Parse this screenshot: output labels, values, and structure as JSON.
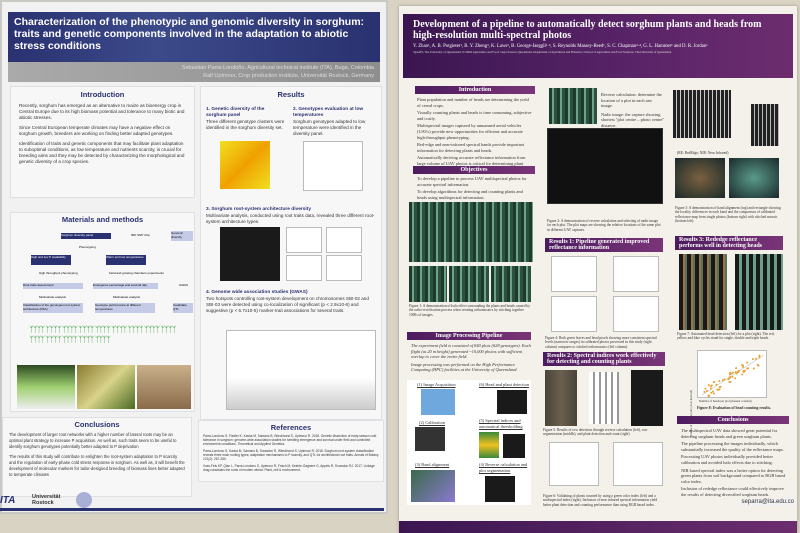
{
  "left_poster": {
    "title": "Characterization of the phenotypic and genomic diversity in sorghum: traits and genetic components involved in the adaptation to abiotic stress conditions",
    "authors": [
      "Sebastián Parra-Londoño, Agricultural technical institute (ITA), Buga, Colombia",
      "Ralf Uptmoor, Crop production institute, Universität Rostock, Germany"
    ],
    "introduction": {
      "heading": "Introduction",
      "bullets": [
        "Recently, sorghum has emerged as an alternative to maize as bioenergy crop in Central Europe due to its high biomass potential and tolerance to many biotic and abiotic stresses.",
        "Since Central European temperate climates may have a negative effect on sorghum growth, breeders are working on finding better adapted genotypes.",
        "Identification of traits and genetic components that may facilitate plant adaptation to suboptimal conditions, as low temperature and nutrients scarcity, is crucial for breeding aims and they may be detected by characterizing the morphological and genetic diversity of a crop species."
      ]
    },
    "materials": {
      "heading": "Materials and methods",
      "nodes": [
        "Sorghum diversity panel",
        "90K SNP chip",
        "Genomic diversity",
        "Phenotyping",
        "High and low P availability",
        "Warm and low temperatures",
        "High throughput phenotyping",
        "Field and growing chambers experiments",
        "Root traits assessment",
        "Emergence percentage and survival rate",
        "GWAS",
        "Multivariate analysis",
        "Multivariate analysis",
        "Classification of the genotypes root-system architecture (RSA)",
        "Genotype performance at different temperatures",
        "Candidate QTL"
      ]
    },
    "results": {
      "heading": "Results",
      "sections": [
        {
          "title": "1. Genetic diversity of the sorghum panel",
          "text": "Three different genotype clusters were identified in the sorghum diversity set."
        },
        {
          "title": "2. Genotypes evaluation at low temperatures",
          "text": "Sorghum genotypes adapted to low temperature were identified in the diversity panel."
        },
        {
          "title": "3. Sorghum root-system architecture diversity",
          "text": "Multivariate analysis, conducted using root traits data, revealed three different root-system architecture types."
        },
        {
          "title": "4. Genome wide association studies (GWAS)",
          "text": "Two hotspots controlling root-system development on chromosomes SBI-02 and SBI-03 were detected using co-localization of significant (p < 2.9x10-6) and suggestive (p < 5.7x10-5) marker-trait associations for several traits."
        }
      ]
    },
    "conclusions": {
      "heading": "Conclusions",
      "bullets": [
        "The development of larger root networks with a higher number of lateral roots may be an optimal plant strategy to increase P acquisition. As well as, such traits seem to be useful to identify sorghum genotypes potentially better adapted to P deprivation",
        "The results of this study will contribute to enlighten the root-system adaptation to P scarcity and the regulation of early-phase cold stress response in sorghum. As well as, it will benefit the development of molecular markers for tailor-designed breeding of biomass lines better adapted to temperate climates"
      ]
    },
    "references": {
      "heading": "References",
      "items": [
        "Parra-Londono S, Fiedler K, Kavka M, Samans B, Wieckhorst S, Uptmoor R. 2018. Genetic dissection of early-season cold tolerance in sorghum: genome-wide association studies for seedling emergence and survival under field and controlled environment conditions. Theoretical and Applied Genetics.",
        "Parra-Londono S, Kavka M, Samans B, Snowdon R, Wieckhorst S, Uptmoor R. 2018. Sorghum root-system classification reveals three main rooting types; adaptation mechanisms to P scarcity, and QTL for architectural root traits. Annals of Botany 121(2): 267-280.",
        "Voss-Fels KP, Qian L, Parra-Londono S, Uptmoor R, Frisch M, Keeble-Gagnere G, Appels R, Snowdon RJ. 2017. Linkage drag constrains the roots of modern wheat. Plant, cell & environment."
      ]
    },
    "logos": {
      "ita": "ITA",
      "rostock": "Universität Rostock"
    },
    "email": "separra@ita.edu.co"
  },
  "right_poster": {
    "title": "Development of a pipeline to automatically detect sorghum plants and heads from high-resolution multi-spectral photos",
    "authors": "Y. Zhao¹, A. B. Potgieter¹, B. Y. Zheng², K. Laws³, B. George-Jaeggli¹·³, S. Reynolds Massey-Reed¹, S. C. Chapman²·⁴, G. L. Hammer¹ and D. R. Jordan¹",
    "affiliations": "¹QAAFI, The University of Queensland; ²CSIRO Agriculture and Food; ³Agri-Science Queensland, Department of Agriculture and Fisheries; ⁴School of Agriculture and Food Sciences, The University of Queensland",
    "introduction": {
      "heading": "Introduction",
      "bullets": [
        "Plant population and number of heads are determining the yield of cereal crops.",
        "Visually counting plants and heads is time consuming, subjective and costly.",
        "Multispectral images captured by unmanned aerial vehicles (UAVs) provide new opportunities for efficient and accurate high-throughput phenotyping.",
        "Red-edge and near-infrared spectral bands provide important information for detecting plants and heads.",
        "Automatically deriving accurate reflectance information from large volume of UAV photos is critical for determining plant organ characteristics."
      ]
    },
    "objectives": {
      "heading": "Objectives",
      "bullets": [
        "To develop a pipeline to process UAV multispectral photos for accurate spectral information.",
        "To develop algorithms for detecting and counting plants and heads using multispectral information."
      ]
    },
    "fig1": "Figure 1: A demonstration of halo effect surrounding the plants and heads caused by the ortho-rectification process when creating orthomosaics by stitching together 1000s of images.",
    "pipeline": {
      "heading": "Image Processing Pipeline",
      "bullets": [
        "The experiment field is consisted of 840 plots (628 genotypes). Each flight (at 20 m height) generated ~10,000 photos with sufficient overlap to cover the entire field.",
        "Image processing was performed on the High Performance Computing (HPC) facilities at the University of Queensland."
      ],
      "steps": [
        "(1) Image Acquisition",
        "(2) Calibration",
        "(3) Band alignment",
        "(4) Reverse calculation and plot segmentation",
        "(5) Spectral indices and automatical thresholding",
        "(6) Head and plant detection"
      ]
    },
    "reverse_notes": [
      "Reverse calculation: determine the location of a plot in each raw image.",
      "Nadir image: the capture showing shortest \"plot centre – photo centre\" distance."
    ],
    "fig2": "Figure 2: A demonstration of reverse calculation and selecting of nadir image for each plot. The plot maps are showing the relative locations of the same plot in different UAV captures.",
    "results1": {
      "heading": "Results 1: Pipeline generated improved reflectance information",
      "fig4": "Figure 4: Both green leaves and head pixels showing more consistent spectral levels (narrower ranges) in calibrated photos processed in this study (right column) compares to stitched orthomosaics (left column)."
    },
    "results2": {
      "heading": "Results 2: Spectral indices work effectively for detecting and counting plants",
      "fig5": "Figure 5: Results of row detection through reverse calculation (left), row segmentation (middle), and plant detection and count (right)",
      "fig6": "Figure 6: Validating of plants counted by using a green color index (left) and a multispectral index (right). Inclusion of near infrared spectral information yield better plant detection and counting performance than using RGB based index."
    },
    "bands_caption": "(RE: RedEdge; NIR: Near Infrared)",
    "fig3": "Figure 3: A demonstration of band alignment (top) and rectangle showing the locality differences in each band and the comparison of calibrated reflectance map from single photos (bottom right) with stitched mosaic (bottom left).",
    "results3": {
      "heading": "Results 3: Rededge reflectance performs well in detecting heads",
      "fig7": "Figure 7: Automated head detection (left) for a plot (right). The red, yellow and blue cycles stand for single, double and triple heads.",
      "fig8": "Figure 8: Evaluation of head counting results.",
      "xlabel": "Number of heads per plot (manual counted)",
      "ylabel": "Number of heads per plot (Auto detected)"
    },
    "conclusions": {
      "heading": "Conclusions",
      "bullets": [
        "The multispectral UAV data showed great potential for detecting sorghum heads and green sorghum plants.",
        "The pipeline processing the images individually, which substantially increased the quality of the reflectance maps.",
        "Processing UAV photos individually provided better calibration and avoided halo effects due to stitching.",
        "NIR based spectral index was a better option for detecting green plants from soil background compared to RGB based color index.",
        "Inclusion of rededge reflectance could effectively improve the results of detecting diversified sorghum heads."
      ]
    }
  },
  "colors": {
    "left_accent": "#2a3170",
    "right_accent": "#5a2468",
    "wall": "#d9d3c4"
  }
}
